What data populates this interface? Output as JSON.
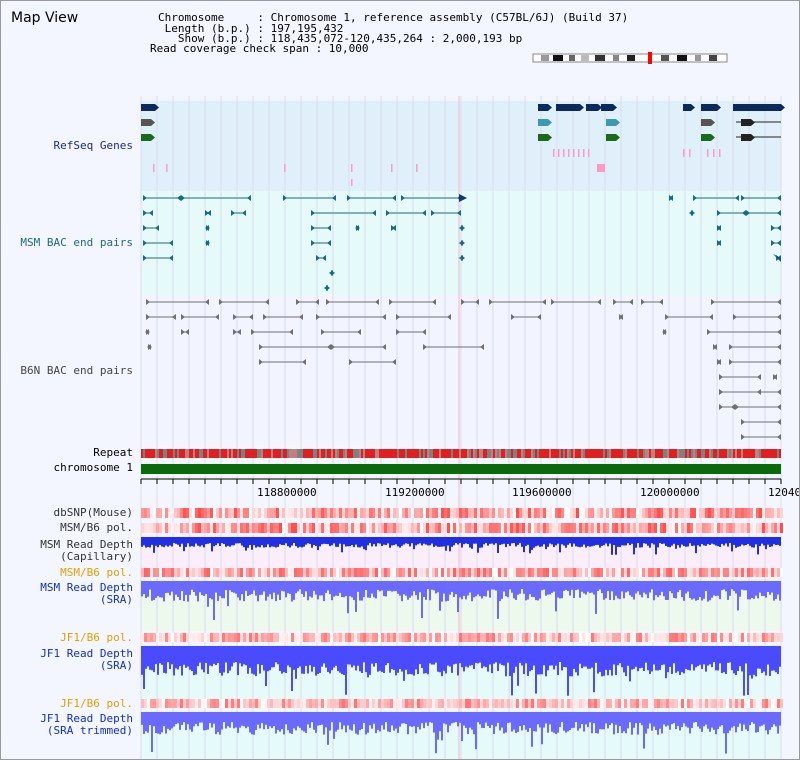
{
  "title": "Map View",
  "info": {
    "line1": "Chromosome     : Chromosome 1, reference assembly (C57BL/6J) (Build 37)",
    "line2": " Length (b.p.) : 197,195,432",
    "line3": "   Show (b.p.) : 118,435,072-120,435,264 : 2,000,193 bp",
    "line4": "Read coverage check span : 10,000"
  },
  "tracks": {
    "refseq": "RefSeq Genes",
    "msm_bac": "MSM BAC end pairs",
    "b6n_bac": "B6N BAC end pairs",
    "repeat": "Repeat",
    "chromosome": "chromosome 1",
    "dbsnp": "dbSNP(Mouse)",
    "msm_pol": "MSM/B6 pol.",
    "msm_depth_cap_1": "MSM Read Depth",
    "msm_depth_cap_2": "(Capillary)",
    "msm_pol_2": "MSM/B6 pol.",
    "msm_depth_sra_1": "MSM Read Depth",
    "msm_depth_sra_2": "(SRA)",
    "jf1_pol": "JF1/B6 pol.",
    "jf1_depth_sra_1": "JF1 Read Depth",
    "jf1_depth_sra_2": "(SRA)",
    "jf1_pol_2": "JF1/B6 pol.",
    "jf1_depth_trim_1": "JF1 Read Depth",
    "jf1_depth_trim_2": "(SRA trimmed)"
  },
  "ticks": [
    "118800000",
    "119200000",
    "119600000",
    "120000000",
    "12040"
  ],
  "colors": {
    "refseq_bg": "#dff0fb",
    "msm_bg": "#e6fafa",
    "navy": "#0b2a5a",
    "teal": "#1a6b80",
    "green": "#0a6a0a",
    "pink": "#ff9ac8",
    "red": "#ff3030",
    "depth_blue": "#2030ff"
  }
}
